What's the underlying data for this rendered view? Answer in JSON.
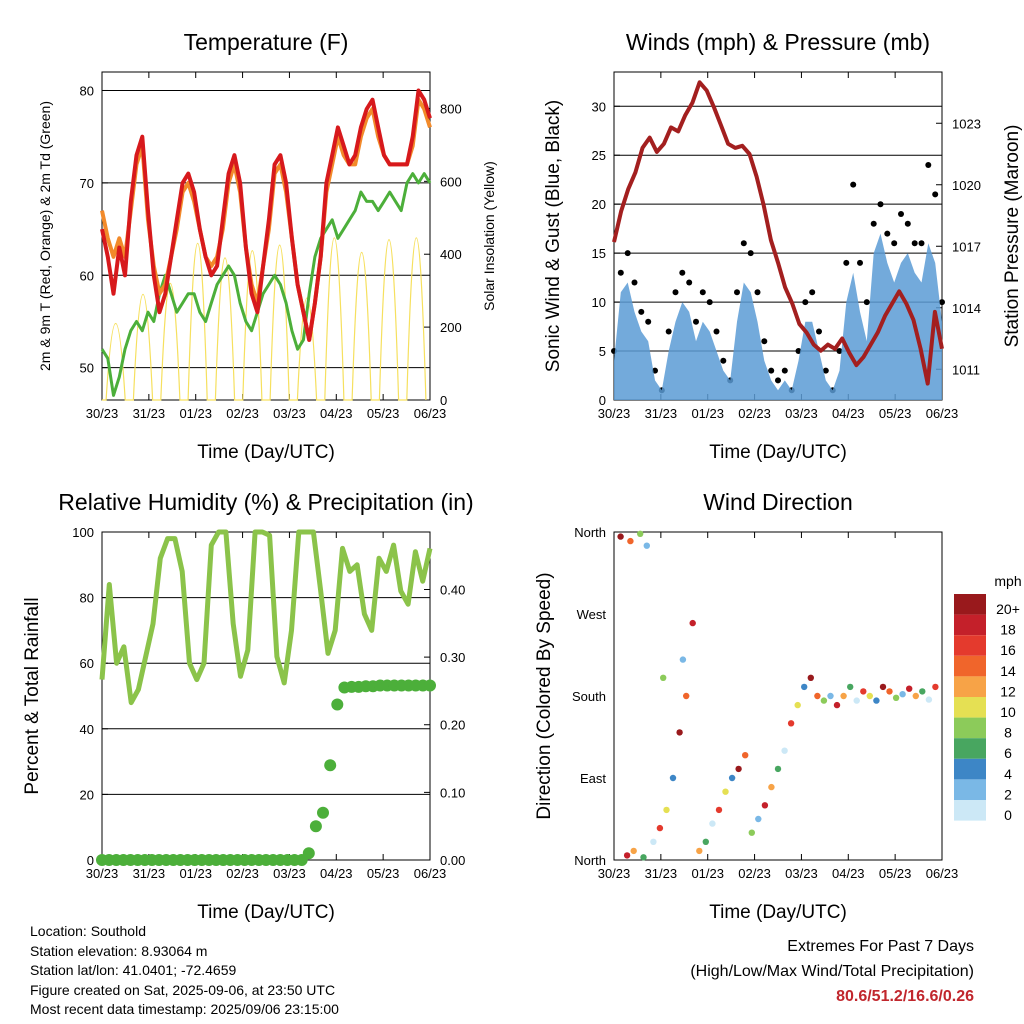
{
  "x_ticks": [
    "30/23",
    "31/23",
    "01/23",
    "02/23",
    "03/23",
    "04/23",
    "05/23",
    "06/23"
  ],
  "charts": [
    {
      "id": "temperature",
      "type": "line",
      "title": "Temperature (F)",
      "xlabel": "Time (Day/UTC)",
      "ylabel": "2m & 9m T (Red, Orange) & 2m Td (Green)",
      "y2label": "Solar Insolation (Yellow)",
      "ylim": [
        46.5,
        82
      ],
      "yticks": [
        50,
        60,
        70,
        80
      ],
      "y2lim": [
        0,
        900
      ],
      "y2ticks": [
        0,
        200,
        400,
        600,
        800
      ],
      "grid": true,
      "series": [
        {
          "color": "#d7191c",
          "values": [
            65,
            62,
            58,
            63,
            60,
            68,
            73,
            75,
            67,
            60,
            56,
            58,
            62,
            66,
            70,
            71,
            69,
            65,
            62,
            60,
            61,
            66,
            71,
            73,
            70,
            63,
            58,
            56,
            61,
            66,
            72,
            73,
            70,
            64,
            59,
            56,
            53,
            57,
            62,
            70,
            73,
            76,
            74,
            72,
            73,
            76,
            78,
            79,
            76,
            73,
            72,
            72,
            72,
            72,
            75,
            80,
            79,
            77
          ]
        },
        {
          "color": "#f28a2a",
          "values": [
            67,
            64,
            62,
            64,
            62,
            67,
            72,
            74,
            66,
            61,
            58,
            59,
            62,
            65,
            69,
            70,
            68,
            65,
            62,
            61,
            62,
            65,
            70,
            72,
            69,
            63,
            59,
            57,
            61,
            65,
            71,
            72,
            69,
            64,
            59,
            56,
            53,
            57,
            62,
            69,
            72,
            75,
            73,
            72,
            72,
            75,
            77,
            78,
            75,
            73,
            72,
            72,
            72,
            72,
            74,
            79,
            78,
            76
          ]
        },
        {
          "color": "#4caf3a",
          "values": [
            52,
            51,
            47,
            49,
            52,
            54,
            55,
            54,
            56,
            55,
            58,
            60,
            58,
            56,
            57,
            58,
            58,
            56,
            55,
            57,
            59,
            60,
            61,
            60,
            57,
            55,
            54,
            56,
            58,
            59,
            60,
            59,
            57,
            54,
            52,
            53,
            58,
            62,
            64,
            65,
            66,
            64,
            65,
            66,
            67,
            69,
            68,
            68,
            67,
            68,
            69,
            68,
            67,
            70,
            71,
            70,
            71,
            70
          ]
        }
      ],
      "solar_peaks": [
        420,
        580,
        640,
        860,
        780,
        820,
        850,
        560,
        890,
        810,
        880,
        890
      ]
    },
    {
      "id": "winds",
      "type": "line",
      "title": "Winds (mph) & Pressure (mb)",
      "xlabel": "Time (Day/UTC)",
      "ylabel": "Sonic Wind & Gust (Blue, Black)",
      "y2label": "Station Pressure (Maroon)",
      "ylim": [
        0,
        33.5
      ],
      "yticks": [
        0,
        5,
        10,
        15,
        20,
        25,
        30
      ],
      "y2lim": [
        1009.5,
        1025.5
      ],
      "y2ticks": [
        1011,
        1014,
        1017,
        1020,
        1023
      ],
      "grid": true,
      "pressure": [
        1017.2,
        1018.7,
        1019.8,
        1020.6,
        1021.8,
        1022.3,
        1021.6,
        1022.0,
        1022.8,
        1022.6,
        1023.4,
        1024.0,
        1025.0,
        1024.6,
        1023.8,
        1022.9,
        1022.0,
        1021.8,
        1021.9,
        1021.5,
        1020.4,
        1019.0,
        1017.3,
        1016.2,
        1015.0,
        1014.2,
        1013.2,
        1012.8,
        1012.2,
        1011.9,
        1012.2,
        1012.0,
        1012.5,
        1011.8,
        1011.2,
        1011.6,
        1012.2,
        1012.8,
        1013.6,
        1014.2,
        1014.8,
        1014.2,
        1013.4,
        1012.0,
        1010.3,
        1013.8,
        1012.0
      ],
      "wind": [
        4,
        11,
        12,
        9,
        7,
        6,
        2,
        1,
        5,
        8,
        10,
        9,
        6,
        8,
        7,
        5,
        3,
        2,
        8,
        12,
        11,
        8,
        4,
        2,
        1,
        2,
        1,
        4,
        8,
        8,
        5,
        2,
        1,
        3,
        10,
        13,
        9,
        6,
        15,
        17,
        14,
        12,
        14,
        15,
        13,
        12,
        16,
        14,
        8
      ],
      "gust": [
        5,
        13,
        15,
        12,
        9,
        8,
        3,
        1,
        7,
        11,
        13,
        12,
        8,
        11,
        10,
        7,
        4,
        2,
        11,
        16,
        15,
        11,
        6,
        3,
        2,
        3,
        1,
        5,
        10,
        11,
        7,
        3,
        1,
        5,
        14,
        22,
        14,
        10,
        18,
        20,
        17,
        16,
        19,
        18,
        16,
        16,
        24,
        21,
        10
      ]
    },
    {
      "id": "humidity",
      "type": "line",
      "title": "Relative Humidity (%) & Precipitation (in)",
      "xlabel": "Time (Day/UTC)",
      "ylabel": "Percent & Total Rainfall",
      "ylim": [
        0,
        100
      ],
      "yticks": [
        0,
        20,
        40,
        60,
        80,
        100
      ],
      "y2lim": [
        0,
        0.485
      ],
      "y2ticks": [
        "0.00",
        "0.10",
        "0.20",
        "0.30",
        "0.40"
      ],
      "grid": true,
      "series": [
        {
          "color": "#8bc34a",
          "values": [
            55,
            84,
            60,
            65,
            48,
            52,
            62,
            72,
            92,
            98,
            98,
            88,
            60,
            55,
            60,
            96,
            100,
            100,
            72,
            56,
            64,
            100,
            100,
            99,
            62,
            54,
            70,
            100,
            100,
            100,
            82,
            63,
            70,
            95,
            88,
            90,
            75,
            70,
            92,
            88,
            96,
            82,
            78,
            94,
            85,
            95
          ]
        }
      ],
      "precip": [
        0,
        0,
        0,
        0,
        0,
        0,
        0,
        0,
        0,
        0,
        0,
        0,
        0,
        0,
        0,
        0,
        0,
        0,
        0,
        0,
        0,
        0,
        0,
        0,
        0,
        0,
        0,
        0,
        0,
        0.01,
        0.05,
        0.07,
        0.14,
        0.23,
        0.255,
        0.256,
        0.256,
        0.257,
        0.257,
        0.258,
        0.258,
        0.258,
        0.258,
        0.258,
        0.258,
        0.258,
        0.258
      ]
    },
    {
      "id": "direction",
      "type": "scatter",
      "title": "Wind Direction",
      "xlabel": "Time (Day/UTC)",
      "ylabel": "Direction (Colored By Speed)",
      "yticks": [
        "North",
        "East",
        "South",
        "West",
        "North"
      ],
      "ylim": [
        0,
        360
      ],
      "legend_title": "mph",
      "legend_labels": [
        "20+",
        "18",
        "16",
        "14",
        "12",
        "10",
        "8",
        "6",
        "4",
        "2",
        "0"
      ],
      "legend_colors": [
        "#99191c",
        "#c4202a",
        "#e43a2d",
        "#f0652b",
        "#f7a347",
        "#e5e053",
        "#8ccb5a",
        "#48a660",
        "#3d86c6",
        "#7ab8e6",
        "#cce8f6"
      ],
      "points": [
        [
          0.02,
          355
        ],
        [
          0.05,
          350
        ],
        [
          0.08,
          358
        ],
        [
          0.1,
          345
        ],
        [
          0.04,
          5
        ],
        [
          0.06,
          10
        ],
        [
          0.09,
          3
        ],
        [
          0.12,
          20
        ],
        [
          0.14,
          35
        ],
        [
          0.16,
          55
        ],
        [
          0.18,
          90
        ],
        [
          0.2,
          140
        ],
        [
          0.22,
          180
        ],
        [
          0.15,
          200
        ],
        [
          0.21,
          220
        ],
        [
          0.24,
          260
        ],
        [
          0.26,
          10
        ],
        [
          0.28,
          20
        ],
        [
          0.3,
          40
        ],
        [
          0.32,
          55
        ],
        [
          0.34,
          75
        ],
        [
          0.36,
          90
        ],
        [
          0.38,
          100
        ],
        [
          0.4,
          115
        ],
        [
          0.42,
          30
        ],
        [
          0.44,
          45
        ],
        [
          0.46,
          60
        ],
        [
          0.48,
          80
        ],
        [
          0.5,
          100
        ],
        [
          0.52,
          120
        ],
        [
          0.54,
          150
        ],
        [
          0.56,
          170
        ],
        [
          0.58,
          190
        ],
        [
          0.6,
          200
        ],
        [
          0.62,
          180
        ],
        [
          0.64,
          175
        ],
        [
          0.66,
          180
        ],
        [
          0.68,
          170
        ],
        [
          0.7,
          180
        ],
        [
          0.72,
          190
        ],
        [
          0.74,
          175
        ],
        [
          0.76,
          185
        ],
        [
          0.78,
          180
        ],
        [
          0.8,
          175
        ],
        [
          0.82,
          190
        ],
        [
          0.84,
          185
        ],
        [
          0.86,
          178
        ],
        [
          0.88,
          182
        ],
        [
          0.9,
          188
        ],
        [
          0.92,
          180
        ],
        [
          0.94,
          185
        ],
        [
          0.96,
          176
        ],
        [
          0.98,
          190
        ]
      ]
    }
  ],
  "info": {
    "location": "Location: Southold",
    "elevation": "Station elevation: 8.93064 m",
    "latlon": "Station lat/lon: 41.0401; -72.4659",
    "created": "Figure created on Sat, 2025-09-06, at 23:50 UTC",
    "recent": "Most recent data timestamp: 2025/09/06 23:15:00"
  },
  "extremes": {
    "title": "Extremes For Past 7 Days",
    "subtitle": "(High/Low/Max Wind/Total Precipitation)",
    "values": "80.6/51.2/16.6/0.26"
  }
}
